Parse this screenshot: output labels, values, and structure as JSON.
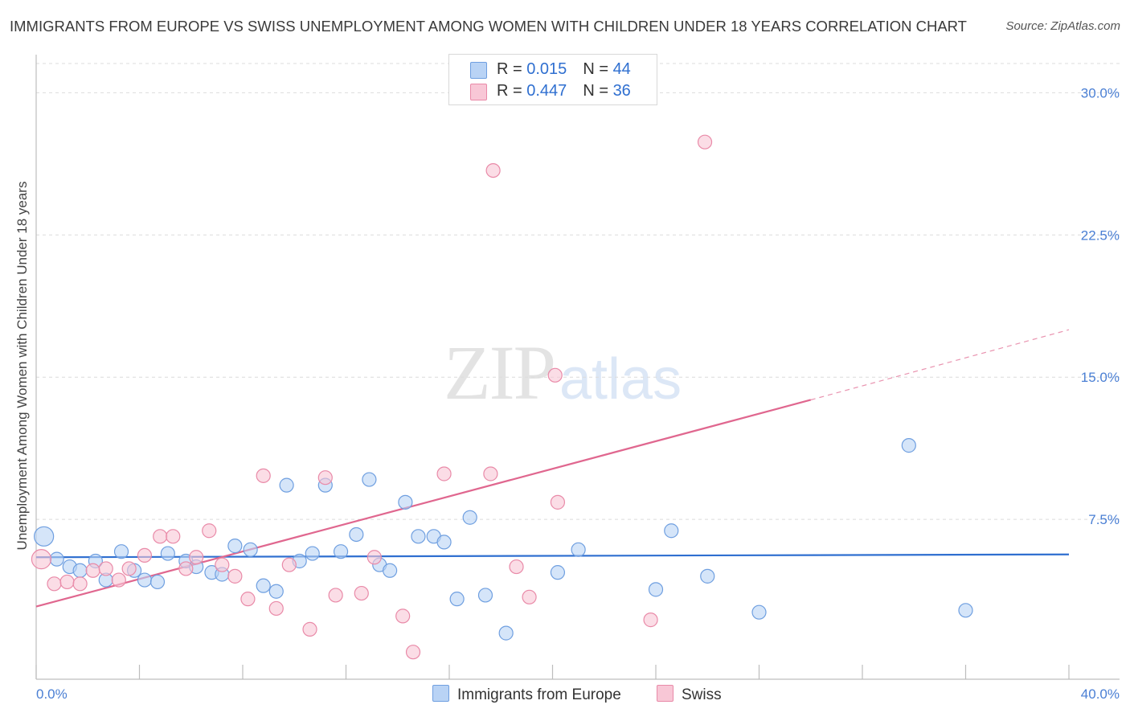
{
  "title": "IMMIGRANTS FROM EUROPE VS SWISS UNEMPLOYMENT AMONG WOMEN WITH CHILDREN UNDER 18 YEARS CORRELATION CHART",
  "source": "Source: ZipAtlas.com",
  "watermark": {
    "zip": "ZIP",
    "atlas": "atlas"
  },
  "legend": {
    "rows": [
      {
        "r_label": "R = ",
        "r_value": "0.015",
        "n_label": "N = ",
        "n_value": "44"
      },
      {
        "r_label": "R = ",
        "r_value": "0.447",
        "n_label": "N = ",
        "n_value": "36"
      }
    ]
  },
  "bottom_legend": [
    "Immigrants from Europe",
    "Swiss"
  ],
  "colors": {
    "blue_fill": "#b9d3f5",
    "blue_stroke": "#6f9fe0",
    "blue_line": "#2f6fd0",
    "pink_fill": "#f8c7d6",
    "pink_stroke": "#e98aa8",
    "pink_line": "#e0678f",
    "tick_text": "#4a7fd4",
    "grid": "#dcdcdc"
  },
  "chart_data": {
    "type": "scatter",
    "title": "IMMIGRANTS FROM EUROPE VS SWISS UNEMPLOYMENT AMONG WOMEN WITH CHILDREN UNDER 18 YEARS CORRELATION CHART",
    "xlabel": "",
    "ylabel": "Unemployment Among Women with Children Under 18 years",
    "xlim": [
      0,
      40
    ],
    "ylim": [
      0,
      31.5
    ],
    "x_tick_labels": [
      "0.0%",
      "40.0%"
    ],
    "y_ticks": [
      7.5,
      15.0,
      22.5,
      30.0
    ],
    "y_tick_labels": [
      "7.5%",
      "15.0%",
      "22.5%",
      "30.0%"
    ],
    "grid": "horizontal dashed",
    "legend_position": "top-center",
    "series": [
      {
        "name": "Immigrants from Europe",
        "color": "#6f9fe0",
        "points": [
          [
            0.3,
            6.6
          ],
          [
            0.8,
            5.4
          ],
          [
            1.3,
            5.0
          ],
          [
            1.7,
            4.8
          ],
          [
            2.3,
            5.3
          ],
          [
            2.7,
            4.3
          ],
          [
            3.3,
            5.8
          ],
          [
            3.8,
            4.8
          ],
          [
            4.2,
            4.3
          ],
          [
            4.7,
            4.2
          ],
          [
            5.1,
            5.7
          ],
          [
            5.8,
            5.3
          ],
          [
            6.2,
            5.0
          ],
          [
            6.8,
            4.7
          ],
          [
            7.2,
            4.6
          ],
          [
            7.7,
            6.1
          ],
          [
            8.3,
            5.9
          ],
          [
            8.8,
            4.0
          ],
          [
            9.3,
            3.7
          ],
          [
            9.7,
            9.3
          ],
          [
            10.2,
            5.3
          ],
          [
            10.7,
            5.7
          ],
          [
            11.2,
            9.3
          ],
          [
            11.8,
            5.8
          ],
          [
            12.4,
            6.7
          ],
          [
            12.9,
            9.6
          ],
          [
            13.3,
            5.1
          ],
          [
            13.7,
            4.8
          ],
          [
            14.3,
            8.4
          ],
          [
            14.8,
            6.6
          ],
          [
            15.4,
            6.6
          ],
          [
            15.8,
            6.3
          ],
          [
            16.3,
            3.3
          ],
          [
            16.8,
            7.6
          ],
          [
            17.4,
            3.5
          ],
          [
            18.2,
            1.5
          ],
          [
            20.2,
            4.7
          ],
          [
            21.0,
            5.9
          ],
          [
            24.0,
            3.8
          ],
          [
            24.6,
            6.9
          ],
          [
            26.0,
            4.5
          ],
          [
            28.0,
            2.6
          ],
          [
            33.8,
            11.4
          ],
          [
            36.0,
            2.7
          ]
        ]
      },
      {
        "name": "Swiss",
        "color": "#e98aa8",
        "points": [
          [
            0.2,
            5.4
          ],
          [
            0.7,
            4.1
          ],
          [
            1.2,
            4.2
          ],
          [
            1.7,
            4.1
          ],
          [
            2.2,
            4.8
          ],
          [
            2.7,
            4.9
          ],
          [
            3.2,
            4.3
          ],
          [
            3.6,
            4.9
          ],
          [
            4.2,
            5.6
          ],
          [
            4.8,
            6.6
          ],
          [
            5.3,
            6.6
          ],
          [
            5.8,
            4.9
          ],
          [
            6.2,
            5.5
          ],
          [
            6.7,
            6.9
          ],
          [
            7.2,
            5.1
          ],
          [
            7.7,
            4.5
          ],
          [
            8.2,
            3.3
          ],
          [
            8.8,
            9.8
          ],
          [
            9.3,
            2.8
          ],
          [
            9.8,
            5.1
          ],
          [
            10.6,
            1.7
          ],
          [
            11.2,
            9.7
          ],
          [
            11.6,
            3.5
          ],
          [
            12.6,
            3.6
          ],
          [
            13.1,
            5.5
          ],
          [
            14.2,
            2.4
          ],
          [
            14.6,
            0.5
          ],
          [
            15.8,
            9.9
          ],
          [
            17.6,
            9.9
          ],
          [
            17.7,
            25.9
          ],
          [
            18.6,
            5.0
          ],
          [
            19.1,
            3.4
          ],
          [
            20.1,
            15.1
          ],
          [
            20.2,
            8.4
          ],
          [
            23.8,
            2.2
          ],
          [
            25.9,
            27.4
          ]
        ]
      }
    ],
    "trend_lines": [
      {
        "series": "Immigrants from Europe",
        "from": [
          0,
          5.5
        ],
        "to": [
          40,
          5.65
        ],
        "style": "solid"
      },
      {
        "series": "Swiss",
        "from": [
          0,
          2.9
        ],
        "to": [
          30,
          13.8
        ],
        "style": "solid",
        "extended_to": [
          40,
          17.5
        ],
        "extension_style": "dashed"
      }
    ]
  }
}
